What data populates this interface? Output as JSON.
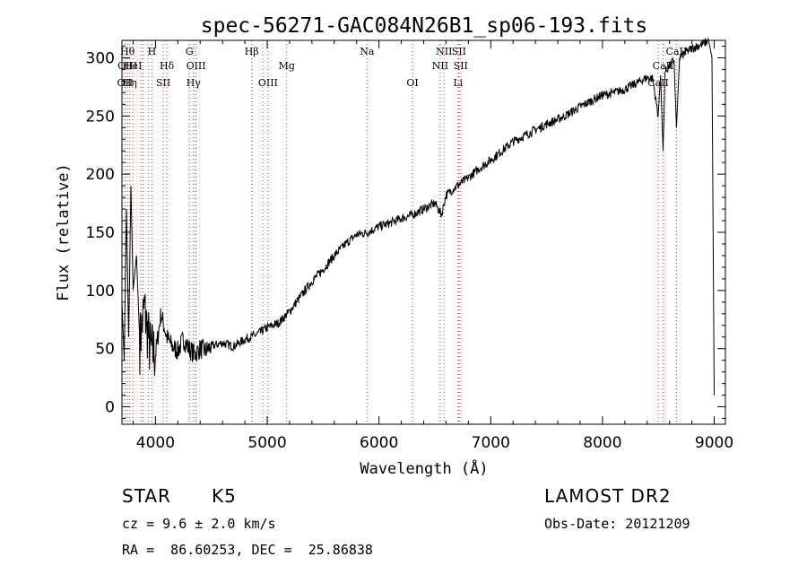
{
  "chart_data": {
    "type": "line",
    "title": "spec-56271-GAC084N26B1_sp06-193.fits",
    "xlabel": "Wavelength (Å)",
    "ylabel": "Flux (relative)",
    "xlim": [
      3700,
      9100
    ],
    "ylim": [
      -15,
      315
    ],
    "xticks": [
      4000,
      5000,
      6000,
      7000,
      8000,
      9000
    ],
    "yticks": [
      0,
      50,
      100,
      150,
      200,
      250,
      300
    ],
    "grid": false,
    "line_color": "#000000",
    "marker_color": "#cc3333",
    "series": [
      {
        "x": [
          3700,
          3720,
          3740,
          3760,
          3780,
          3800,
          3830,
          3860,
          3900,
          3950,
          4000,
          4050,
          4100,
          4150,
          4200,
          4250,
          4300,
          4350,
          4400,
          4450,
          4500,
          4600,
          4700,
          4800,
          4900,
          5000,
          5100,
          5200,
          5300,
          5400,
          5500,
          5600,
          5700,
          5800,
          5900,
          6000,
          6100,
          6200,
          6300,
          6400,
          6500,
          6560,
          6600,
          6700,
          6800,
          6900,
          7000,
          7100,
          7200,
          7300,
          7400,
          7500,
          7600,
          7700,
          7800,
          7900,
          8000,
          8100,
          8200,
          8300,
          8400,
          8450,
          8498,
          8520,
          8542,
          8560,
          8600,
          8640,
          8662,
          8690,
          8750,
          8800,
          8850,
          8900,
          8950,
          8980,
          9000
        ],
        "y": [
          90,
          40,
          170,
          60,
          190,
          100,
          130,
          55,
          85,
          50,
          45,
          80,
          60,
          52,
          48,
          58,
          50,
          45,
          50,
          48,
          52,
          55,
          52,
          58,
          62,
          68,
          72,
          82,
          95,
          108,
          118,
          130,
          140,
          148,
          150,
          155,
          158,
          162,
          165,
          170,
          175,
          165,
          182,
          190,
          197,
          205,
          212,
          220,
          228,
          233,
          238,
          243,
          247,
          252,
          258,
          263,
          268,
          270,
          273,
          278,
          283,
          282,
          250,
          285,
          220,
          288,
          293,
          298,
          240,
          300,
          305,
          308,
          310,
          312,
          315,
          300,
          10
        ]
      }
    ],
    "lines": [
      {
        "w": 3727,
        "labels": [
          {
            "t": "OII",
            "row": 3
          }
        ]
      },
      {
        "w": 3750,
        "labels": [
          {
            "t": "Hθ",
            "row": 1
          },
          {
            "t": "OIII",
            "row": 2
          }
        ]
      },
      {
        "w": 3771,
        "labels": [
          {
            "t": "Hη",
            "row": 3
          }
        ]
      },
      {
        "w": 3798,
        "labels": [
          {
            "t": "HeI",
            "row": 2
          }
        ]
      },
      {
        "w": 3869,
        "labels": []
      },
      {
        "w": 3889,
        "labels": []
      },
      {
        "w": 3934,
        "labels": []
      },
      {
        "w": 3968,
        "labels": [
          {
            "t": "H",
            "row": 1
          }
        ]
      },
      {
        "w": 4070,
        "labels": [
          {
            "t": "SII",
            "row": 3
          }
        ]
      },
      {
        "w": 4102,
        "labels": [
          {
            "t": "Hδ",
            "row": 2
          }
        ]
      },
      {
        "w": 4304,
        "labels": [
          {
            "t": "G",
            "row": 1
          }
        ]
      },
      {
        "w": 4340,
        "labels": [
          {
            "t": "Hγ",
            "row": 3
          }
        ]
      },
      {
        "w": 4363,
        "labels": [
          {
            "t": "OIII",
            "row": 2
          }
        ]
      },
      {
        "w": 4861,
        "labels": [
          {
            "t": "Hβ",
            "row": 1
          }
        ]
      },
      {
        "w": 4959,
        "labels": []
      },
      {
        "w": 5007,
        "labels": [
          {
            "t": "OIII",
            "row": 3
          }
        ]
      },
      {
        "w": 5175,
        "labels": [
          {
            "t": "Mg",
            "row": 2
          }
        ]
      },
      {
        "w": 5893,
        "labels": [
          {
            "t": "Na",
            "row": 1
          }
        ]
      },
      {
        "w": 6300,
        "labels": [
          {
            "t": "OI",
            "row": 3
          }
        ]
      },
      {
        "w": 6548,
        "labels": [
          {
            "t": "NII",
            "row": 2
          }
        ]
      },
      {
        "w": 6583,
        "labels": [
          {
            "t": "NII",
            "row": 1
          }
        ]
      },
      {
        "w": 6708,
        "labels": [
          {
            "t": "Li",
            "row": 3
          }
        ]
      },
      {
        "w": 6716,
        "labels": [
          {
            "t": "SII",
            "row": 1
          }
        ]
      },
      {
        "w": 6731,
        "labels": [
          {
            "t": "SII",
            "row": 2
          }
        ]
      },
      {
        "w": 8498,
        "labels": [
          {
            "t": "CaII",
            "row": 3
          }
        ]
      },
      {
        "w": 8542,
        "labels": [
          {
            "t": "CaII",
            "row": 2
          }
        ]
      },
      {
        "w": 8662,
        "labels": [
          {
            "t": "CaII",
            "row": 1
          }
        ]
      }
    ]
  },
  "info": {
    "object_class": "STAR",
    "subclass": "K5",
    "survey": "LAMOST DR2",
    "redshift": "cz = 9.6 ± 2.0 km/s",
    "obs_date": "Obs-Date: 20121209",
    "coords": "RA =  86.60253, DEC =  25.86838"
  }
}
